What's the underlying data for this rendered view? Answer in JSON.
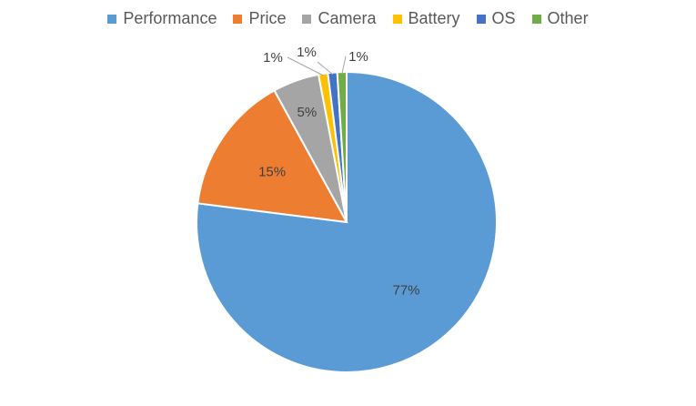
{
  "chart_data": {
    "type": "pie",
    "legend_position": "top",
    "slices": [
      {
        "name": "Performance",
        "value": 77,
        "label": "77%",
        "color": "#5B9BD5"
      },
      {
        "name": "Price",
        "value": 15,
        "label": "15%",
        "color": "#ED7D31"
      },
      {
        "name": "Camera",
        "value": 5,
        "label": "5%",
        "color": "#A5A5A5"
      },
      {
        "name": "Battery",
        "value": 1,
        "label": "1%",
        "color": "#FFC000"
      },
      {
        "name": "OS",
        "value": 1,
        "label": "1%",
        "color": "#4472C4"
      },
      {
        "name": "Other",
        "value": 1,
        "label": "1%",
        "color": "#70AD47"
      }
    ]
  }
}
